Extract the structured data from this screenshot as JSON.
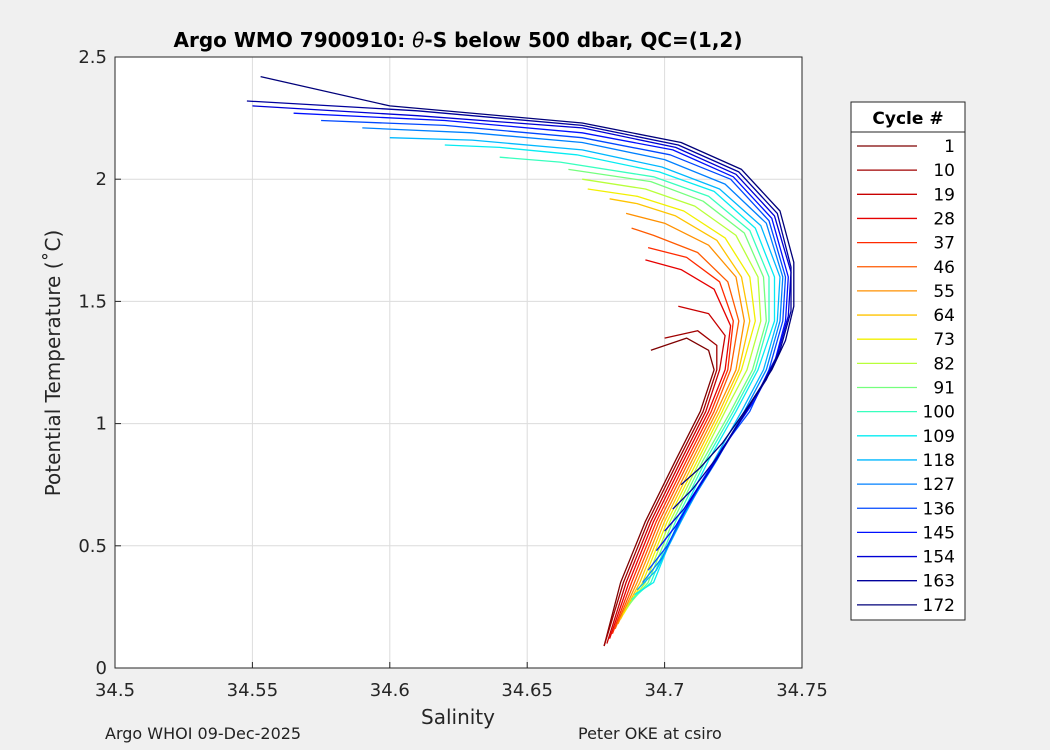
{
  "chart_data": {
    "type": "line",
    "title_prefix": "Argo WMO 7900910: ",
    "title_symbol": "θ",
    "title_suffix": "-S below 500 dbar,  QC=(1,2)",
    "xlabel": "Salinity",
    "ylabel": "Potential Temperature (˚C)",
    "xlim": [
      34.5,
      34.75
    ],
    "ylim": [
      0,
      2.5
    ],
    "xticks": [
      "34.5",
      "34.55",
      "34.6",
      "34.65",
      "34.7",
      "34.75"
    ],
    "yticks": [
      "0",
      "0.5",
      "1",
      "1.5",
      "2",
      "2.5"
    ],
    "grid": true,
    "colormap": "jet",
    "legend_title": "Cycle #",
    "legend_position": "outside-right",
    "legend_entries": [
      "1",
      "10",
      "19",
      "28",
      "37",
      "46",
      "55",
      "64",
      "73",
      "82",
      "91",
      "100",
      "109",
      "118",
      "127",
      "136",
      "145",
      "154",
      "163",
      "172"
    ],
    "legend_colors": [
      "#7f0000",
      "#a00000",
      "#c80000",
      "#e60000",
      "#ff2a00",
      "#ff5a00",
      "#ff9000",
      "#ffc400",
      "#f2f000",
      "#b8ff3a",
      "#74ff7e",
      "#38ffbe",
      "#06ecf2",
      "#00b8ff",
      "#0080ff",
      "#0048ff",
      "#0010ff",
      "#0000d4",
      "#00009c",
      "#00007a"
    ],
    "series": [
      {
        "name": "1",
        "x": [
          34.678,
          34.684,
          34.693,
          34.704,
          34.713,
          34.718,
          34.716,
          34.708,
          34.695
        ],
        "y": [
          0.09,
          0.35,
          0.6,
          0.85,
          1.05,
          1.22,
          1.3,
          1.35,
          1.3
        ]
      },
      {
        "name": "10",
        "x": [
          34.678,
          34.685,
          34.694,
          34.705,
          34.714,
          34.719,
          34.719,
          34.712,
          34.7
        ],
        "y": [
          0.09,
          0.35,
          0.6,
          0.85,
          1.05,
          1.22,
          1.32,
          1.38,
          1.35
        ]
      },
      {
        "name": "19",
        "x": [
          34.679,
          34.686,
          34.695,
          34.706,
          34.715,
          34.72,
          34.722,
          34.716,
          34.705
        ],
        "y": [
          0.1,
          0.35,
          0.6,
          0.85,
          1.05,
          1.22,
          1.36,
          1.45,
          1.48
        ]
      },
      {
        "name": "28",
        "x": [
          34.68,
          34.687,
          34.696,
          34.707,
          34.716,
          34.722,
          34.724,
          34.718,
          34.706,
          34.693
        ],
        "y": [
          0.12,
          0.35,
          0.6,
          0.85,
          1.05,
          1.22,
          1.4,
          1.55,
          1.63,
          1.67
        ]
      },
      {
        "name": "37",
        "x": [
          34.681,
          34.688,
          34.697,
          34.708,
          34.717,
          34.723,
          34.725,
          34.72,
          34.708,
          34.694
        ],
        "y": [
          0.14,
          0.35,
          0.6,
          0.85,
          1.05,
          1.22,
          1.42,
          1.58,
          1.68,
          1.72
        ]
      },
      {
        "name": "46",
        "x": [
          34.682,
          34.689,
          34.698,
          34.709,
          34.718,
          34.724,
          34.727,
          34.723,
          34.712,
          34.696,
          34.688
        ],
        "y": [
          0.16,
          0.35,
          0.6,
          0.85,
          1.05,
          1.22,
          1.42,
          1.58,
          1.7,
          1.77,
          1.8
        ]
      },
      {
        "name": "55",
        "x": [
          34.683,
          34.69,
          34.699,
          34.71,
          34.719,
          34.726,
          34.729,
          34.726,
          34.716,
          34.7,
          34.686
        ],
        "y": [
          0.18,
          0.35,
          0.6,
          0.85,
          1.05,
          1.22,
          1.42,
          1.6,
          1.73,
          1.82,
          1.86
        ]
      },
      {
        "name": "64",
        "x": [
          34.684,
          34.691,
          34.7,
          34.711,
          34.72,
          34.727,
          34.731,
          34.728,
          34.719,
          34.704,
          34.69,
          34.68
        ],
        "y": [
          0.2,
          0.35,
          0.6,
          0.85,
          1.05,
          1.22,
          1.42,
          1.6,
          1.75,
          1.85,
          1.9,
          1.92
        ]
      },
      {
        "name": "73",
        "x": [
          34.685,
          34.692,
          34.701,
          34.712,
          34.721,
          34.728,
          34.733,
          34.731,
          34.722,
          34.707,
          34.69,
          34.672
        ],
        "y": [
          0.22,
          0.35,
          0.6,
          0.85,
          1.05,
          1.22,
          1.42,
          1.6,
          1.76,
          1.87,
          1.93,
          1.96
        ]
      },
      {
        "name": "82",
        "x": [
          34.686,
          34.693,
          34.702,
          34.713,
          34.722,
          34.73,
          34.735,
          34.734,
          34.726,
          34.711,
          34.693,
          34.67
        ],
        "y": [
          0.24,
          0.35,
          0.6,
          0.85,
          1.05,
          1.22,
          1.42,
          1.6,
          1.77,
          1.89,
          1.96,
          2.0
        ]
      },
      {
        "name": "91",
        "x": [
          34.687,
          34.694,
          34.703,
          34.714,
          34.724,
          34.732,
          34.737,
          34.736,
          34.729,
          34.714,
          34.695,
          34.665
        ],
        "y": [
          0.26,
          0.35,
          0.6,
          0.85,
          1.05,
          1.22,
          1.42,
          1.6,
          1.78,
          1.91,
          1.99,
          2.04
        ]
      },
      {
        "name": "100",
        "x": [
          34.688,
          34.695,
          34.704,
          34.715,
          34.725,
          34.733,
          34.738,
          34.738,
          34.731,
          34.716,
          34.696,
          34.662,
          34.64
        ],
        "y": [
          0.28,
          0.35,
          0.6,
          0.85,
          1.05,
          1.22,
          1.42,
          1.6,
          1.79,
          1.93,
          2.01,
          2.07,
          2.09
        ]
      },
      {
        "name": "109",
        "x": [
          34.689,
          34.696,
          34.705,
          34.716,
          34.726,
          34.734,
          34.74,
          34.74,
          34.733,
          34.718,
          34.698,
          34.668,
          34.64,
          34.62
        ],
        "y": [
          0.3,
          0.35,
          0.6,
          0.85,
          1.05,
          1.22,
          1.42,
          1.6,
          1.8,
          1.95,
          2.03,
          2.1,
          2.13,
          2.14
        ]
      },
      {
        "name": "118",
        "x": [
          34.69,
          34.697,
          34.706,
          34.718,
          34.728,
          34.736,
          34.741,
          34.742,
          34.735,
          34.72,
          34.699,
          34.67,
          34.63,
          34.6
        ],
        "y": [
          0.32,
          0.4,
          0.6,
          0.85,
          1.05,
          1.22,
          1.42,
          1.6,
          1.81,
          1.96,
          2.05,
          2.12,
          2.16,
          2.17
        ]
      },
      {
        "name": "127",
        "x": [
          34.692,
          34.699,
          34.708,
          34.719,
          34.729,
          34.737,
          34.742,
          34.743,
          34.737,
          34.722,
          34.7,
          34.67,
          34.63,
          34.59
        ],
        "y": [
          0.35,
          0.45,
          0.65,
          0.85,
          1.05,
          1.22,
          1.42,
          1.6,
          1.82,
          1.98,
          2.08,
          2.15,
          2.19,
          2.21
        ]
      },
      {
        "name": "136",
        "x": [
          34.694,
          34.701,
          34.71,
          34.721,
          34.731,
          34.738,
          34.743,
          34.744,
          34.738,
          34.724,
          34.702,
          34.67,
          34.62,
          34.575
        ],
        "y": [
          0.4,
          0.5,
          0.7,
          0.9,
          1.05,
          1.22,
          1.42,
          1.6,
          1.83,
          2.0,
          2.1,
          2.17,
          2.22,
          2.24
        ]
      },
      {
        "name": "145",
        "x": [
          34.697,
          34.704,
          34.713,
          34.724,
          34.733,
          34.74,
          34.744,
          34.745,
          34.739,
          34.725,
          34.703,
          34.67,
          34.62,
          34.565
        ],
        "y": [
          0.48,
          0.58,
          0.75,
          0.95,
          1.1,
          1.25,
          1.42,
          1.6,
          1.84,
          2.01,
          2.12,
          2.19,
          2.24,
          2.27
        ]
      },
      {
        "name": "154",
        "x": [
          34.7,
          34.707,
          34.716,
          34.727,
          34.735,
          34.741,
          34.745,
          34.746,
          34.74,
          34.726,
          34.704,
          34.67,
          34.61,
          34.55
        ],
        "y": [
          0.56,
          0.65,
          0.8,
          1.0,
          1.15,
          1.28,
          1.44,
          1.62,
          1.85,
          2.02,
          2.13,
          2.21,
          2.26,
          2.3
        ]
      },
      {
        "name": "163",
        "x": [
          34.703,
          34.71,
          34.719,
          34.729,
          34.737,
          34.742,
          34.746,
          34.746,
          34.741,
          34.727,
          34.705,
          34.67,
          34.61,
          34.548
        ],
        "y": [
          0.65,
          0.73,
          0.86,
          1.04,
          1.18,
          1.3,
          1.46,
          1.64,
          1.86,
          2.03,
          2.14,
          2.22,
          2.28,
          2.32
        ]
      },
      {
        "name": "172",
        "x": [
          34.706,
          34.713,
          34.721,
          34.731,
          34.739,
          34.744,
          34.747,
          34.747,
          34.742,
          34.728,
          34.706,
          34.67,
          34.6,
          34.553
        ],
        "y": [
          0.75,
          0.82,
          0.92,
          1.08,
          1.22,
          1.34,
          1.48,
          1.66,
          1.87,
          2.04,
          2.15,
          2.23,
          2.3,
          2.42
        ]
      }
    ]
  },
  "footer": {
    "left": "Argo WHOI 09-Dec-2025",
    "right": "Peter OKE at csiro"
  }
}
